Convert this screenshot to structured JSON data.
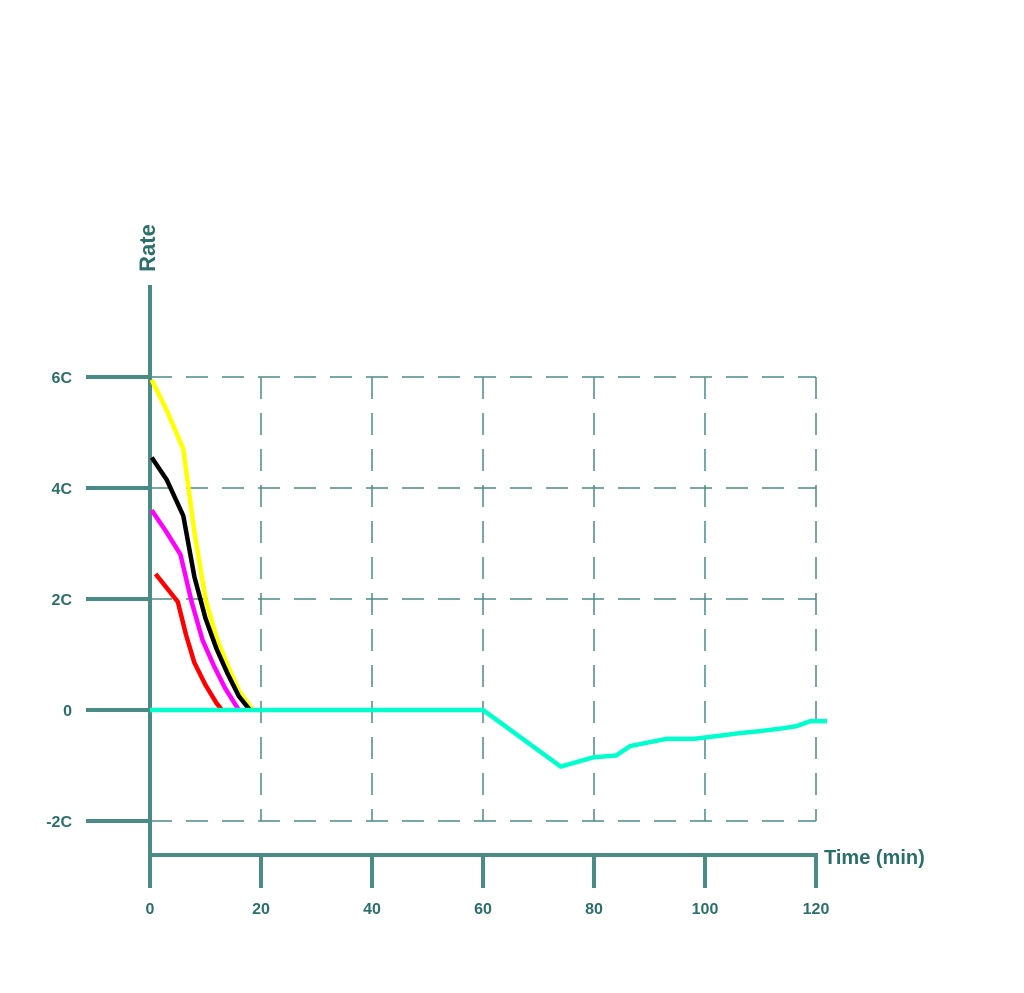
{
  "chart_data": {
    "type": "line",
    "xlabel": "Time (min)",
    "ylabel": "Rate",
    "x_ticks": [
      0,
      20,
      40,
      60,
      80,
      100,
      120
    ],
    "x_tick_labels": [
      "0",
      "20",
      "40",
      "60",
      "80",
      "100",
      "120"
    ],
    "y_ticks": [
      -2,
      0,
      2,
      4,
      6
    ],
    "y_tick_labels": [
      "-2C",
      "0",
      "2C",
      "4C",
      "6C"
    ],
    "xlim": [
      0,
      120
    ],
    "ylim": [
      -2.6,
      7.5
    ],
    "grid": true,
    "axis_color": "#4a8c85",
    "series": [
      {
        "color": "#ffff00",
        "x": [
          0.3,
          3,
          6,
          8,
          10,
          12,
          14,
          16,
          18.5
        ],
        "y": [
          5.95,
          5.4,
          4.7,
          3.2,
          2.0,
          1.3,
          0.8,
          0.35,
          0.0
        ]
      },
      {
        "color": "#000000",
        "x": [
          0.3,
          3,
          6,
          8,
          10,
          12,
          14,
          16,
          18
        ],
        "y": [
          4.55,
          4.15,
          3.5,
          2.4,
          1.65,
          1.1,
          0.65,
          0.25,
          0.0
        ]
      },
      {
        "color": "#ff00ff",
        "x": [
          0.3,
          3,
          5.5,
          7.5,
          9.5,
          11.5,
          13.5,
          16
        ],
        "y": [
          3.6,
          3.2,
          2.8,
          1.95,
          1.25,
          0.8,
          0.4,
          0.0
        ]
      },
      {
        "color": "#ff0000",
        "x": [
          1,
          3,
          5,
          6.5,
          8,
          10,
          12,
          13
        ],
        "y": [
          2.45,
          2.2,
          1.95,
          1.35,
          0.85,
          0.45,
          0.12,
          0.0
        ]
      },
      {
        "color": "#00ffcc",
        "x": [
          0,
          20,
          40,
          60,
          74,
          80,
          84,
          86.5,
          90,
          93,
          98,
          103,
          106,
          110,
          114,
          116.5,
          119,
          122
        ],
        "y": [
          0,
          0,
          0,
          0,
          -1.02,
          -0.85,
          -0.82,
          -0.65,
          -0.58,
          -0.52,
          -0.52,
          -0.46,
          -0.42,
          -0.38,
          -0.33,
          -0.29,
          -0.2,
          -0.2
        ]
      }
    ]
  }
}
